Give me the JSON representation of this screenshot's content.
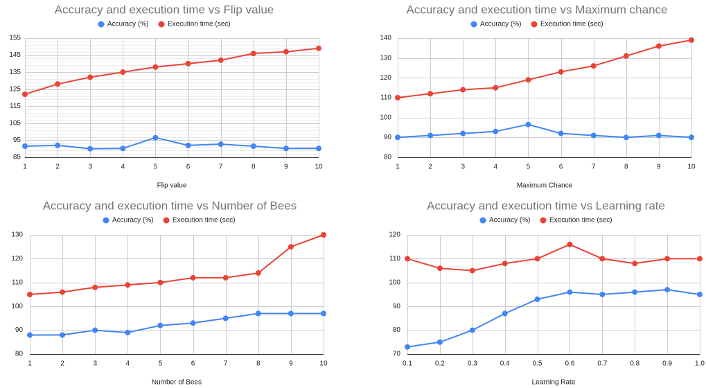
{
  "colors": {
    "accuracy": "#4285f4",
    "execution": "#ea4335"
  },
  "chart_data": [
    {
      "type": "line",
      "title": "Accuracy and execution time vs Flip value",
      "xlabel": "Flip value",
      "ylabel": "",
      "x": [
        1,
        2,
        3,
        4,
        5,
        6,
        7,
        8,
        9,
        10
      ],
      "x_tick_labels": [
        "1",
        "2",
        "3",
        "4",
        "5",
        "6",
        "7",
        "8",
        "9",
        "10"
      ],
      "ylim": [
        85,
        155
      ],
      "y_ticks": [
        85,
        95,
        105,
        115,
        125,
        135,
        145,
        155
      ],
      "y_tick_labels": [
        "85",
        "95",
        "105",
        "115",
        "125",
        "135",
        "145",
        "155"
      ],
      "minor_grid": true,
      "legend_position": "top",
      "grid": true,
      "series": [
        {
          "name": "Accuracy (%)",
          "values": [
            91.5,
            92,
            90,
            90.2,
            96.5,
            92,
            92.7,
            91.5,
            90.2,
            90.2
          ]
        },
        {
          "name": "Execution time (sec)",
          "values": [
            122,
            128,
            132,
            135,
            138,
            140,
            142,
            146,
            147,
            149
          ]
        }
      ]
    },
    {
      "type": "line",
      "title": "Accuracy and execution time vs Maximum chance",
      "xlabel": "Maximum Chance",
      "ylabel": "",
      "x": [
        1,
        2,
        3,
        4,
        5,
        6,
        7,
        8,
        9,
        10
      ],
      "x_tick_labels": [
        "1",
        "2",
        "3",
        "4",
        "5",
        "6",
        "7",
        "8",
        "9",
        "10"
      ],
      "ylim": [
        80,
        140
      ],
      "y_ticks": [
        80,
        90,
        100,
        110,
        120,
        130,
        140
      ],
      "y_tick_labels": [
        "80",
        "90",
        "100",
        "110",
        "120",
        "130",
        "140"
      ],
      "minor_grid": false,
      "legend_position": "top",
      "grid": true,
      "series": [
        {
          "name": "Accuracy (%)",
          "values": [
            90,
            91,
            92,
            93,
            96.5,
            92,
            91,
            90,
            91,
            90
          ]
        },
        {
          "name": "Execution time (sec)",
          "values": [
            110,
            112,
            114,
            115,
            119,
            123,
            126,
            131,
            136,
            139
          ]
        }
      ]
    },
    {
      "type": "line",
      "title": "Accuracy and execution time vs Number of Bees",
      "xlabel": "Number of Bees",
      "ylabel": "",
      "x": [
        1,
        2,
        3,
        4,
        5,
        6,
        7,
        8,
        9,
        10
      ],
      "x_tick_labels": [
        "1",
        "2",
        "3",
        "4",
        "5",
        "6",
        "7",
        "8",
        "9",
        "10"
      ],
      "ylim": [
        80,
        130
      ],
      "y_ticks": [
        80,
        90,
        100,
        110,
        120,
        130
      ],
      "y_tick_labels": [
        "80",
        "90",
        "100",
        "110",
        "120",
        "130"
      ],
      "minor_grid": false,
      "legend_position": "top",
      "grid": true,
      "series": [
        {
          "name": "Accuracy (%)",
          "values": [
            88,
            88,
            90,
            89,
            92,
            93,
            95,
            97,
            97,
            97
          ]
        },
        {
          "name": "Execution time (sec)",
          "values": [
            105,
            106,
            108,
            109,
            110,
            112,
            112,
            114,
            125,
            130
          ]
        }
      ]
    },
    {
      "type": "line",
      "title": "Accuracy and execution time vs Learning rate",
      "xlabel": "Learning Rate",
      "ylabel": "",
      "x": [
        0.1,
        0.2,
        0.3,
        0.4,
        0.5,
        0.6,
        0.7,
        0.8,
        0.9,
        1.0
      ],
      "x_tick_labels": [
        "0.1",
        "0.2",
        "0.3",
        "0.4",
        "0.5",
        "0.6",
        "0.7",
        "0.8",
        "0.9",
        "1.0"
      ],
      "ylim": [
        70,
        120
      ],
      "y_ticks": [
        70,
        80,
        90,
        100,
        110,
        120
      ],
      "y_tick_labels": [
        "70",
        "80",
        "90",
        "100",
        "110",
        "120"
      ],
      "minor_grid": false,
      "legend_position": "top",
      "grid": true,
      "series": [
        {
          "name": "Accuracy (%)",
          "values": [
            73,
            75,
            80,
            87,
            93,
            96,
            95,
            96,
            97,
            95
          ]
        },
        {
          "name": "Execution time (sec)",
          "values": [
            110,
            106,
            105,
            108,
            110,
            116,
            110,
            108,
            110,
            110
          ]
        }
      ]
    }
  ]
}
